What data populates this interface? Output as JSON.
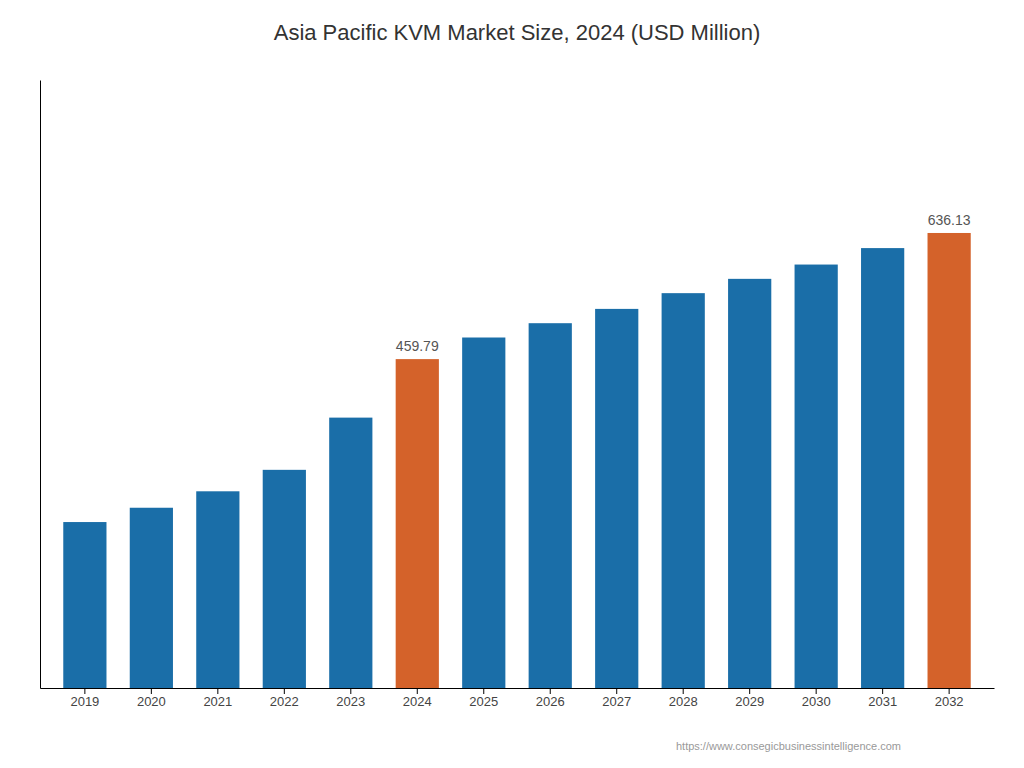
{
  "chart_data": {
    "type": "bar",
    "title": "Asia Pacific KVM Market Size, 2024 (USD Million)",
    "categories": [
      "2019",
      "2020",
      "2021",
      "2022",
      "2023",
      "2024",
      "2025",
      "2026",
      "2027",
      "2028",
      "2029",
      "2030",
      "2031",
      "2032"
    ],
    "values": [
      232,
      252,
      275,
      305,
      378,
      459.79,
      490,
      510,
      530,
      552,
      572,
      592,
      615,
      636.13
    ],
    "colors": [
      "#1a6ea8",
      "#1a6ea8",
      "#1a6ea8",
      "#1a6ea8",
      "#1a6ea8",
      "#d4622a",
      "#1a6ea8",
      "#1a6ea8",
      "#1a6ea8",
      "#1a6ea8",
      "#1a6ea8",
      "#1a6ea8",
      "#1a6ea8",
      "#d4622a"
    ],
    "annotations": [
      {
        "category": "2024",
        "text": "459.79"
      },
      {
        "category": "2032",
        "text": "636.13"
      }
    ],
    "watermark": "https://www.consegicbusinessintelligence.com",
    "ylim": [
      0,
      850
    ],
    "tick_labels": "x",
    "grid": false
  }
}
